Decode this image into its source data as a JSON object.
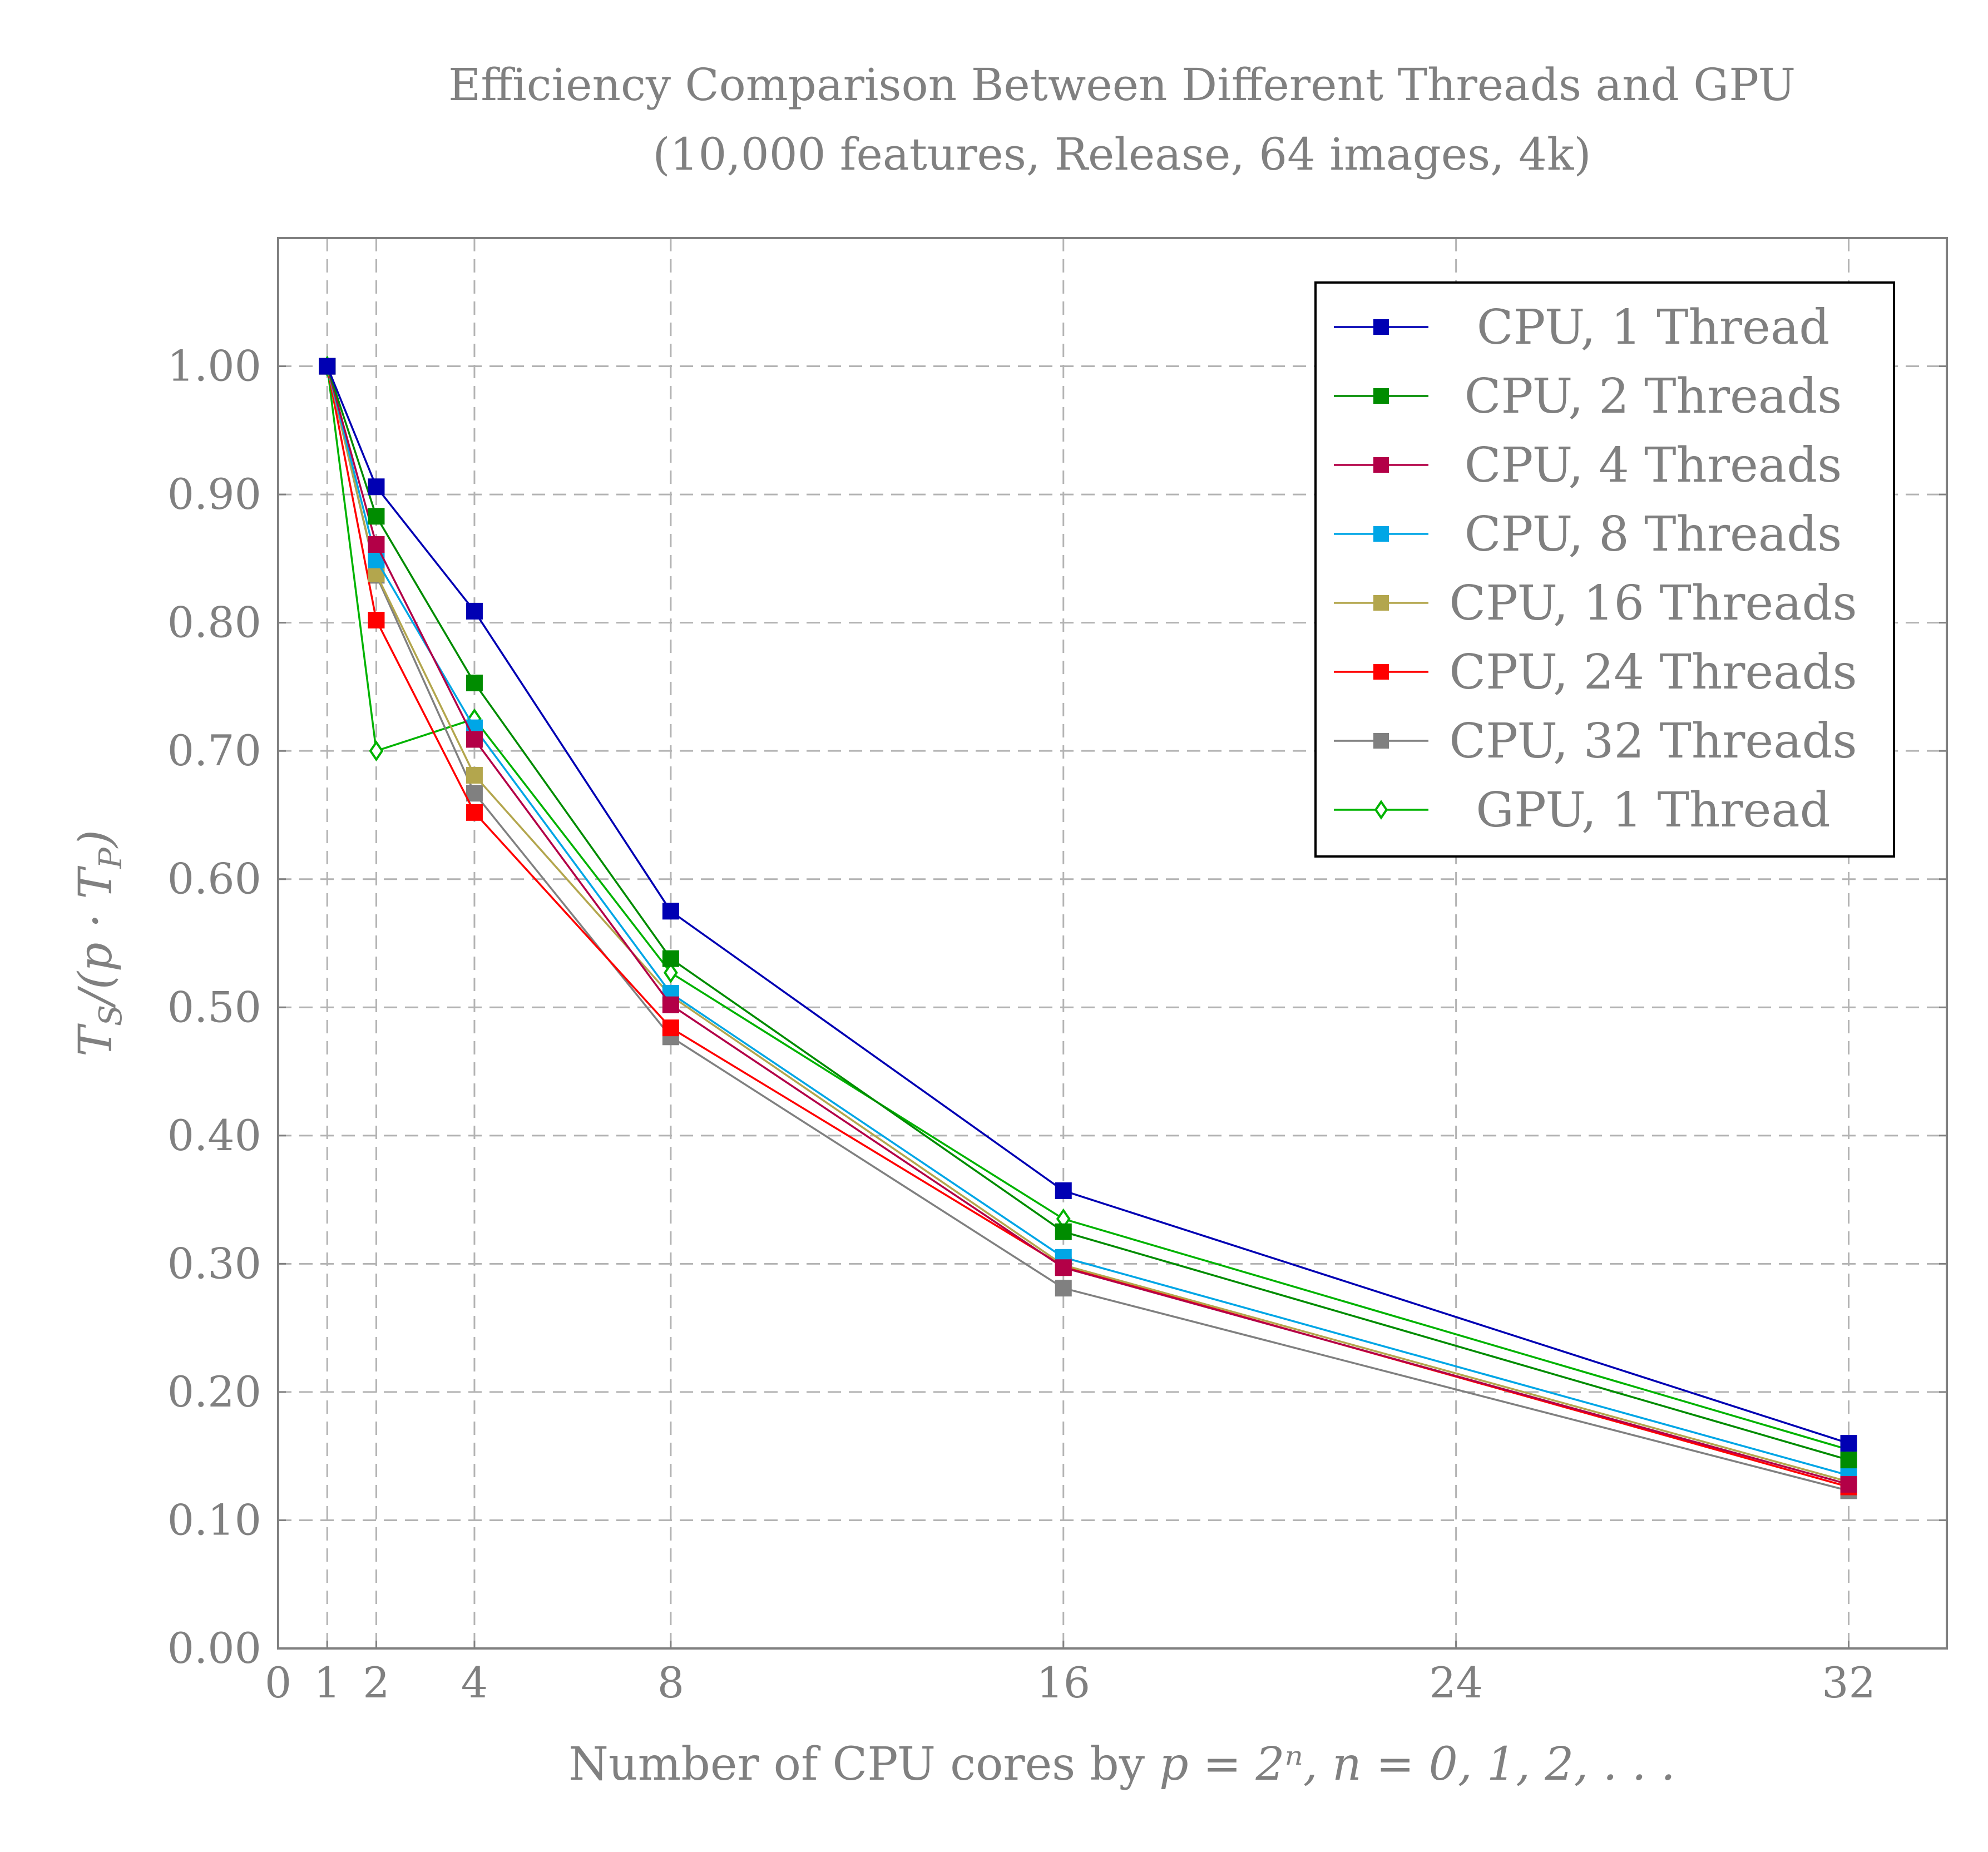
{
  "chart_data": {
    "type": "line",
    "title": "Efficiency Comparison Between Different Threads and GPU",
    "subtitle": "(10,000 features, Release, 64 images, 4k)",
    "xlabel_prefix": "Number of CPU cores by ",
    "xlabel_math": "p = 2ⁿ, n = 0, 1, 2, . . .",
    "ylabel_T": "T",
    "ylabel_S": "S",
    "ylabel_mid": "/(p · T",
    "ylabel_P": "P",
    "ylabel_end": ")",
    "xlim": [
      0,
      34
    ],
    "ylim": [
      0,
      1.1
    ],
    "xticks": [
      0,
      1,
      2,
      4,
      8,
      16,
      24,
      32
    ],
    "xtick_labels": [
      "0",
      "1",
      "2",
      "4",
      "8",
      "16",
      "24",
      "32"
    ],
    "yticks": [
      0,
      0.1,
      0.2,
      0.3,
      0.4,
      0.5,
      0.6,
      0.7,
      0.8,
      0.9,
      1.0
    ],
    "ytick_labels": [
      "0.00",
      "0.10",
      "0.20",
      "0.30",
      "0.40",
      "0.50",
      "0.60",
      "0.70",
      "0.80",
      "0.90",
      "1.00"
    ],
    "grid": true,
    "legend_position": "top-right",
    "x": [
      1,
      2,
      4,
      8,
      16,
      32
    ],
    "series": [
      {
        "name": "CPU, 1 Thread",
        "color": "#0000b3",
        "marker": "square",
        "values": [
          1.0,
          0.906,
          0.809,
          0.575,
          0.357,
          0.16
        ]
      },
      {
        "name": "CPU, 2 Threads",
        "color": "#008c00",
        "marker": "square",
        "values": [
          1.0,
          0.883,
          0.753,
          0.538,
          0.325,
          0.147
        ]
      },
      {
        "name": "CPU, 4 Threads",
        "color": "#b30047",
        "marker": "square",
        "values": [
          1.0,
          0.861,
          0.709,
          0.502,
          0.297,
          0.128
        ]
      },
      {
        "name": "CPU, 8 Threads",
        "color": "#00a6e6",
        "marker": "square",
        "values": [
          1.0,
          0.849,
          0.718,
          0.511,
          0.305,
          0.135
        ]
      },
      {
        "name": "CPU, 16 Threads",
        "color": "#b3a64d",
        "marker": "square",
        "values": [
          1.0,
          0.838,
          0.681,
          0.509,
          0.299,
          0.13
        ]
      },
      {
        "name": "CPU, 24 Threads",
        "color": "#ff0000",
        "marker": "square",
        "values": [
          1.0,
          0.802,
          0.652,
          0.484,
          0.298,
          0.126
        ]
      },
      {
        "name": "CPU, 32 Threads",
        "color": "#808080",
        "marker": "square",
        "values": [
          1.0,
          0.837,
          0.667,
          0.477,
          0.281,
          0.123
        ]
      },
      {
        "name": "GPU, 1 Thread",
        "color": "#00b300",
        "marker": "diamond",
        "values": [
          1.0,
          0.7,
          0.725,
          0.527,
          0.335,
          0.155
        ]
      }
    ]
  }
}
